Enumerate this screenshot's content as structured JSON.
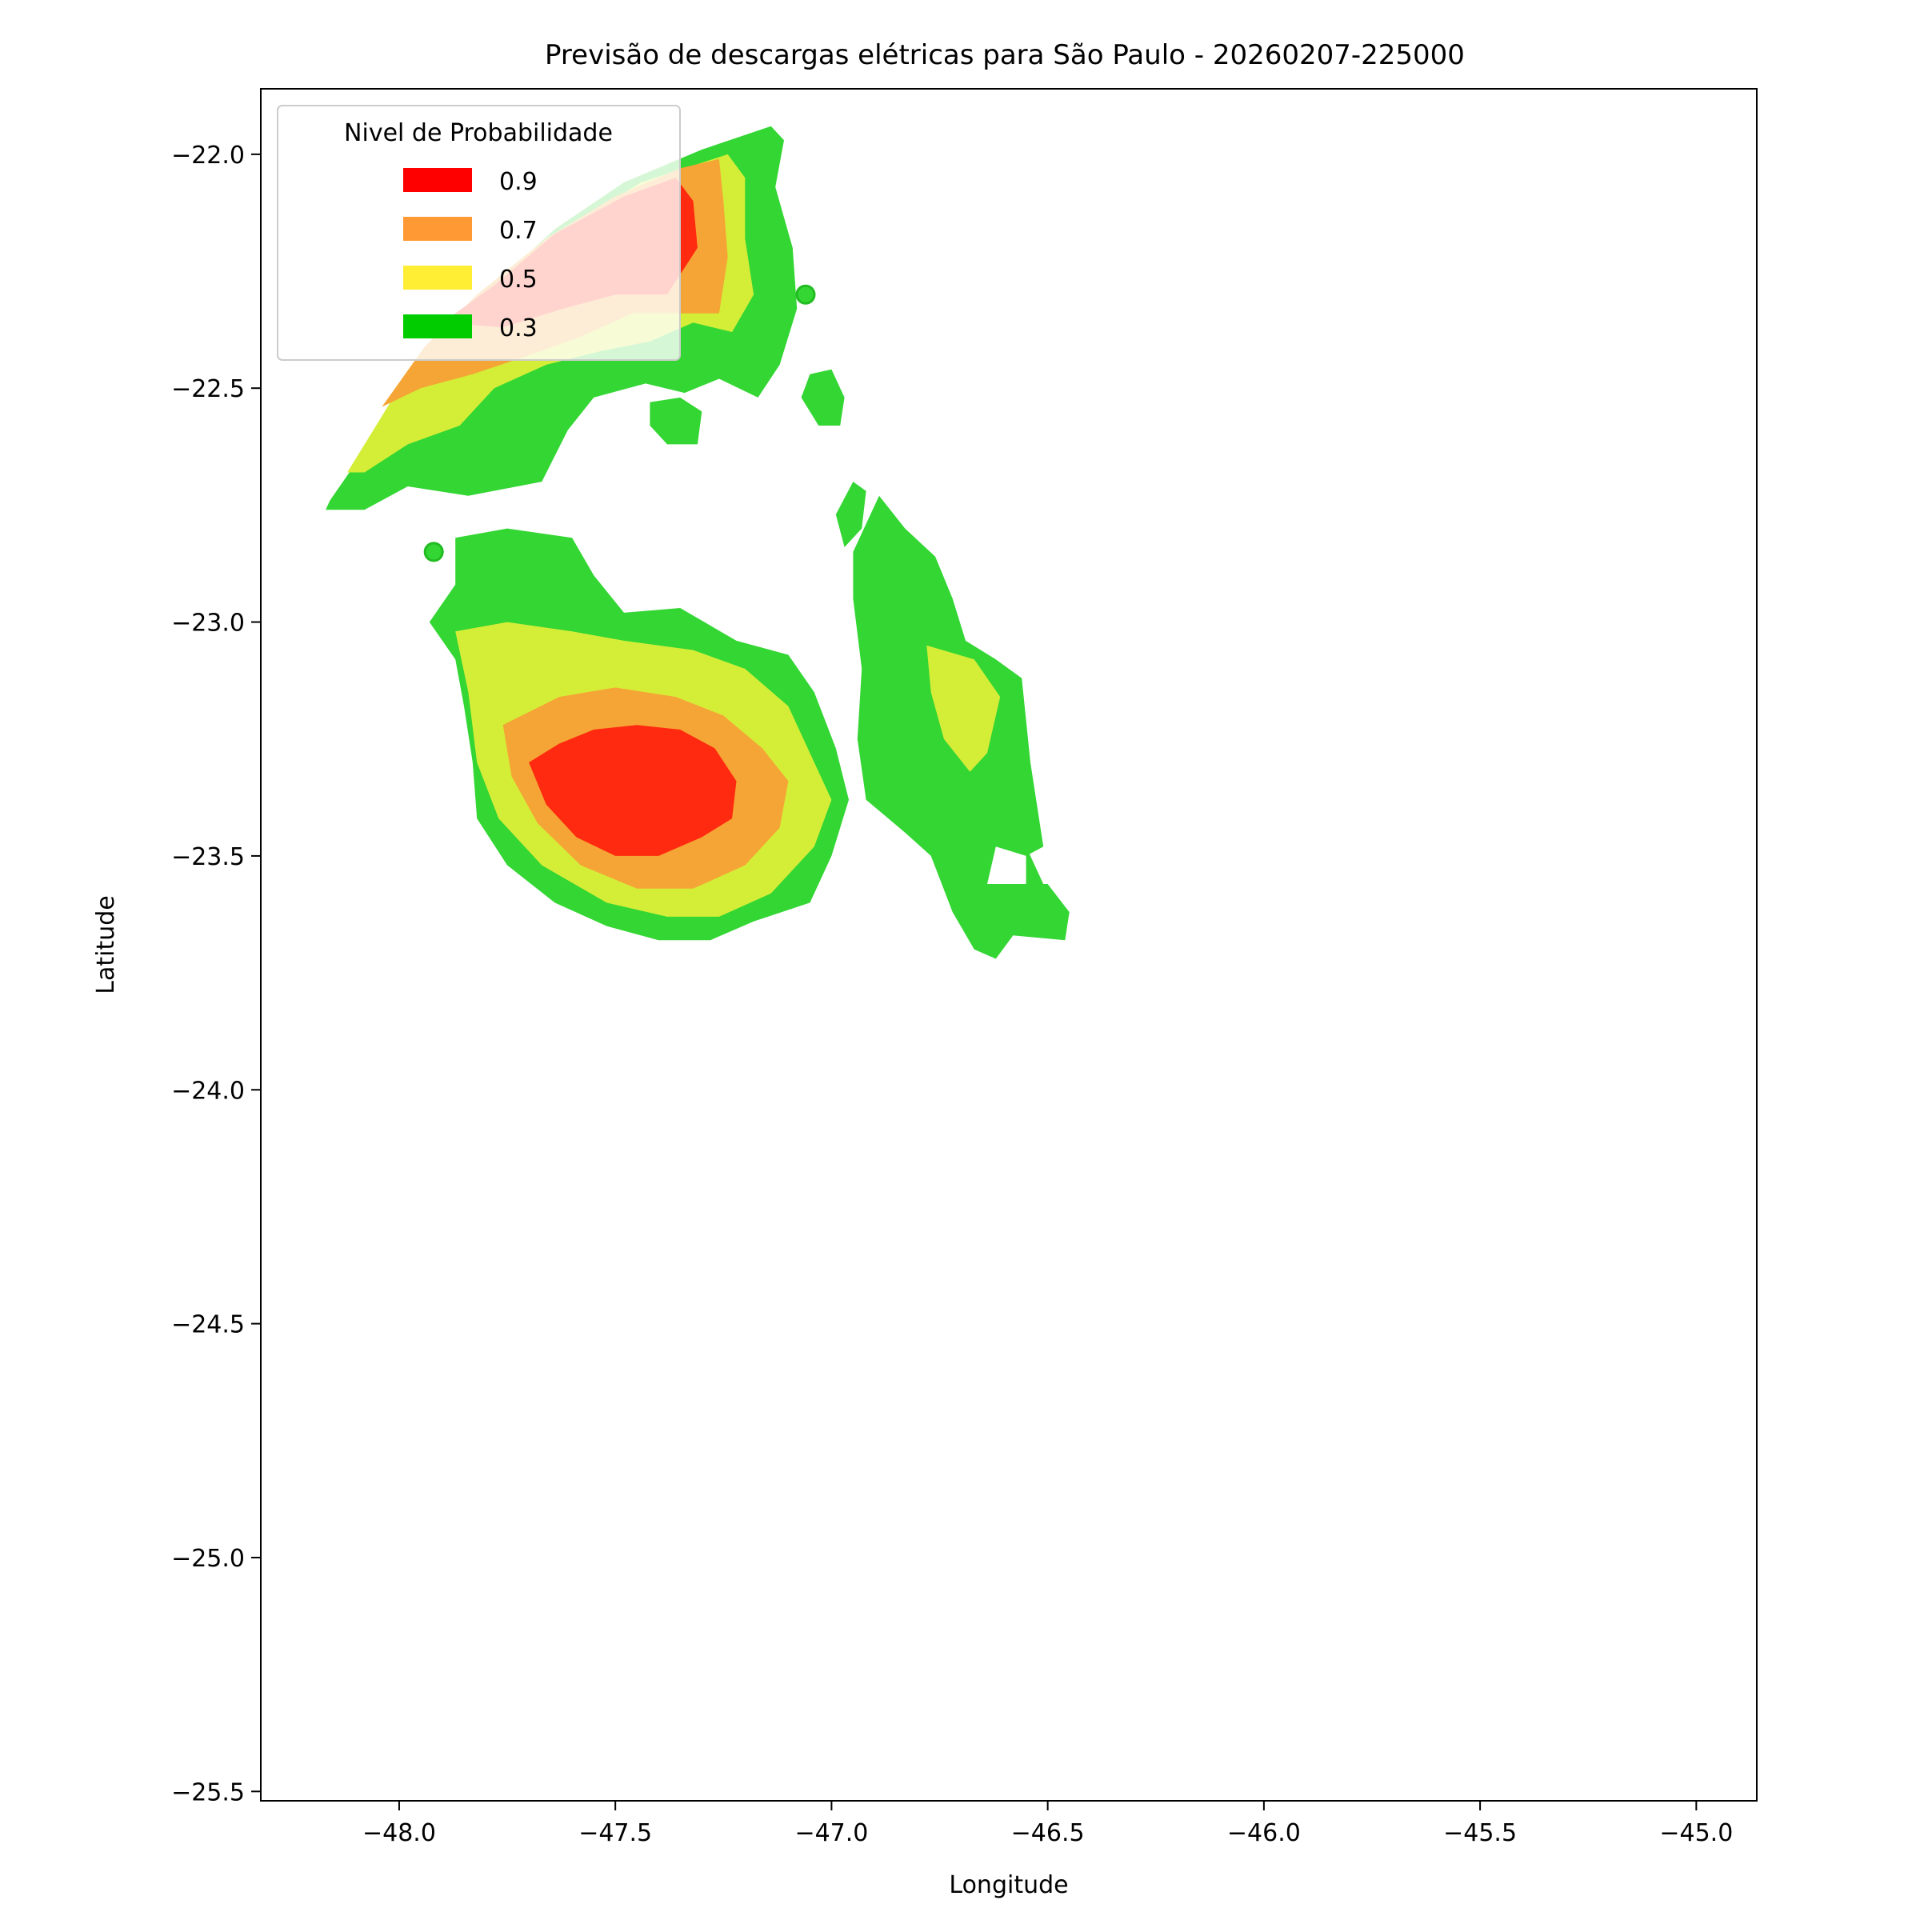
{
  "chart_data": {
    "type": "contour",
    "title": "Previsão de descargas elétricas para São Paulo - 20260207-225000",
    "xlabel": "Longitude",
    "ylabel": "Latitude",
    "xlim": [
      -48.32,
      -44.86
    ],
    "ylim": [
      -25.52,
      -21.86
    ],
    "x_ticks": [
      -48.0,
      -47.5,
      -47.0,
      -46.5,
      -46.0,
      -45.5,
      -45.0
    ],
    "x_tick_labels": [
      "−48.0",
      "−47.5",
      "−47.0",
      "−46.5",
      "−46.0",
      "−45.5",
      "−45.0"
    ],
    "y_ticks": [
      -22.0,
      -22.5,
      -23.0,
      -23.5,
      -24.0,
      -24.5,
      -25.0,
      -25.5
    ],
    "y_tick_labels": [
      "−22.0",
      "−22.5",
      "−23.0",
      "−23.5",
      "−24.0",
      "−24.5",
      "−25.0",
      "−25.5"
    ],
    "grid": false,
    "legend": {
      "title": "Nivel de Probabilidade",
      "placement": "upper-left",
      "entries": [
        {
          "label": "0.9",
          "color": "#ff0000"
        },
        {
          "label": "0.7",
          "color": "#ff9933"
        },
        {
          "label": "0.5",
          "color": "#ffee33"
        },
        {
          "label": "0.3",
          "color": "#00cc00"
        }
      ]
    },
    "fill_colors": {
      "0.3": "#33d633",
      "0.5": "#d4ee38",
      "0.7": "#f5a535",
      "0.9": "#ff2a0f"
    },
    "regions": [
      {
        "name": "north-arc",
        "level": "0.3",
        "points": [
          [
            -48.16,
            -22.74
          ],
          [
            -48.07,
            -22.62
          ],
          [
            -47.99,
            -22.5
          ],
          [
            -47.88,
            -22.37
          ],
          [
            -47.77,
            -22.27
          ],
          [
            -47.64,
            -22.16
          ],
          [
            -47.48,
            -22.06
          ],
          [
            -47.3,
            -21.99
          ],
          [
            -47.14,
            -21.94
          ],
          [
            -47.11,
            -21.97
          ],
          [
            -47.13,
            -22.07
          ],
          [
            -47.09,
            -22.2
          ],
          [
            -47.08,
            -22.33
          ],
          [
            -47.12,
            -22.45
          ],
          [
            -47.17,
            -22.52
          ],
          [
            -47.26,
            -22.48
          ],
          [
            -47.34,
            -22.51
          ],
          [
            -47.43,
            -22.49
          ],
          [
            -47.55,
            -22.52
          ],
          [
            -47.61,
            -22.59
          ],
          [
            -47.67,
            -22.7
          ],
          [
            -47.84,
            -22.73
          ],
          [
            -47.98,
            -22.71
          ],
          [
            -48.08,
            -22.76
          ],
          [
            -48.17,
            -22.76
          ]
        ]
      },
      {
        "name": "north-arc",
        "level": "0.5",
        "points": [
          [
            -48.12,
            -22.68
          ],
          [
            -48.02,
            -22.53
          ],
          [
            -47.9,
            -22.4
          ],
          [
            -47.75,
            -22.27
          ],
          [
            -47.6,
            -22.15
          ],
          [
            -47.44,
            -22.06
          ],
          [
            -47.24,
            -22.0
          ],
          [
            -47.2,
            -22.05
          ],
          [
            -47.2,
            -22.18
          ],
          [
            -47.18,
            -22.3
          ],
          [
            -47.23,
            -22.38
          ],
          [
            -47.32,
            -22.36
          ],
          [
            -47.42,
            -22.4
          ],
          [
            -47.53,
            -22.42
          ],
          [
            -47.66,
            -22.45
          ],
          [
            -47.78,
            -22.5
          ],
          [
            -47.86,
            -22.58
          ],
          [
            -47.98,
            -22.62
          ],
          [
            -48.08,
            -22.68
          ]
        ]
      },
      {
        "name": "north-arc",
        "level": "0.7",
        "points": [
          [
            -48.04,
            -22.54
          ],
          [
            -47.94,
            -22.41
          ],
          [
            -47.82,
            -22.3
          ],
          [
            -47.66,
            -22.18
          ],
          [
            -47.5,
            -22.09
          ],
          [
            -47.35,
            -22.03
          ],
          [
            -47.26,
            -22.01
          ],
          [
            -47.25,
            -22.1
          ],
          [
            -47.24,
            -22.22
          ],
          [
            -47.26,
            -22.34
          ],
          [
            -47.36,
            -22.34
          ],
          [
            -47.46,
            -22.34
          ],
          [
            -47.58,
            -22.39
          ],
          [
            -47.7,
            -22.43
          ],
          [
            -47.83,
            -22.47
          ],
          [
            -47.95,
            -22.5
          ]
        ]
      },
      {
        "name": "north-arc",
        "level": "0.9",
        "points": [
          [
            -47.9,
            -22.36
          ],
          [
            -47.78,
            -22.28
          ],
          [
            -47.64,
            -22.17
          ],
          [
            -47.48,
            -22.09
          ],
          [
            -47.36,
            -22.05
          ],
          [
            -47.32,
            -22.1
          ],
          [
            -47.31,
            -22.2
          ],
          [
            -47.38,
            -22.3
          ],
          [
            -47.5,
            -22.3
          ],
          [
            -47.62,
            -22.33
          ],
          [
            -47.76,
            -22.37
          ]
        ]
      },
      {
        "name": "central-cell",
        "level": "0.3",
        "points": [
          [
            -47.93,
            -23.0
          ],
          [
            -47.87,
            -23.08
          ],
          [
            -47.85,
            -23.18
          ],
          [
            -47.83,
            -23.3
          ],
          [
            -47.82,
            -23.42
          ],
          [
            -47.75,
            -23.52
          ],
          [
            -47.64,
            -23.6
          ],
          [
            -47.52,
            -23.65
          ],
          [
            -47.4,
            -23.68
          ],
          [
            -47.28,
            -23.68
          ],
          [
            -47.18,
            -23.64
          ],
          [
            -47.05,
            -23.6
          ],
          [
            -47.0,
            -23.5
          ],
          [
            -46.96,
            -23.38
          ],
          [
            -46.99,
            -23.27
          ],
          [
            -47.04,
            -23.15
          ],
          [
            -47.1,
            -23.07
          ],
          [
            -47.22,
            -23.04
          ],
          [
            -47.35,
            -22.97
          ],
          [
            -47.48,
            -22.98
          ],
          [
            -47.55,
            -22.9
          ],
          [
            -47.6,
            -22.82
          ],
          [
            -47.75,
            -22.8
          ],
          [
            -47.87,
            -22.82
          ],
          [
            -47.87,
            -22.92
          ]
        ]
      },
      {
        "name": "central-cell",
        "level": "0.5",
        "points": [
          [
            -47.87,
            -23.02
          ],
          [
            -47.84,
            -23.15
          ],
          [
            -47.82,
            -23.3
          ],
          [
            -47.77,
            -23.42
          ],
          [
            -47.67,
            -23.52
          ],
          [
            -47.52,
            -23.6
          ],
          [
            -47.38,
            -23.63
          ],
          [
            -47.26,
            -23.63
          ],
          [
            -47.14,
            -23.58
          ],
          [
            -47.04,
            -23.48
          ],
          [
            -47.0,
            -23.38
          ],
          [
            -47.05,
            -23.28
          ],
          [
            -47.1,
            -23.18
          ],
          [
            -47.2,
            -23.1
          ],
          [
            -47.32,
            -23.06
          ],
          [
            -47.48,
            -23.04
          ],
          [
            -47.6,
            -23.02
          ],
          [
            -47.75,
            -23.0
          ]
        ]
      },
      {
        "name": "central-cell",
        "level": "0.7",
        "points": [
          [
            -47.76,
            -23.22
          ],
          [
            -47.74,
            -23.33
          ],
          [
            -47.68,
            -23.43
          ],
          [
            -47.58,
            -23.52
          ],
          [
            -47.45,
            -23.57
          ],
          [
            -47.32,
            -23.57
          ],
          [
            -47.2,
            -23.52
          ],
          [
            -47.12,
            -23.44
          ],
          [
            -47.1,
            -23.34
          ],
          [
            -47.16,
            -23.27
          ],
          [
            -47.25,
            -23.2
          ],
          [
            -47.36,
            -23.16
          ],
          [
            -47.5,
            -23.14
          ],
          [
            -47.63,
            -23.16
          ]
        ]
      },
      {
        "name": "central-cell",
        "level": "0.9",
        "points": [
          [
            -47.7,
            -23.3
          ],
          [
            -47.66,
            -23.39
          ],
          [
            -47.59,
            -23.46
          ],
          [
            -47.5,
            -23.5
          ],
          [
            -47.4,
            -23.5
          ],
          [
            -47.3,
            -23.46
          ],
          [
            -47.23,
            -23.42
          ],
          [
            -47.22,
            -23.34
          ],
          [
            -47.27,
            -23.27
          ],
          [
            -47.35,
            -23.23
          ],
          [
            -47.45,
            -23.22
          ],
          [
            -47.55,
            -23.23
          ],
          [
            -47.63,
            -23.26
          ]
        ]
      },
      {
        "name": "east-strip",
        "level": "0.3",
        "points": [
          [
            -46.89,
            -22.73
          ],
          [
            -46.83,
            -22.8
          ],
          [
            -46.76,
            -22.86
          ],
          [
            -46.72,
            -22.95
          ],
          [
            -46.69,
            -23.04
          ],
          [
            -46.62,
            -23.08
          ],
          [
            -46.56,
            -23.12
          ],
          [
            -46.54,
            -23.3
          ],
          [
            -46.51,
            -23.48
          ],
          [
            -46.55,
            -23.5
          ],
          [
            -46.62,
            -23.48
          ],
          [
            -46.64,
            -23.56
          ],
          [
            -46.5,
            -23.56
          ],
          [
            -46.45,
            -23.62
          ],
          [
            -46.46,
            -23.68
          ],
          [
            -46.58,
            -23.67
          ],
          [
            -46.62,
            -23.72
          ],
          [
            -46.67,
            -23.7
          ],
          [
            -46.72,
            -23.62
          ],
          [
            -46.77,
            -23.5
          ],
          [
            -46.83,
            -23.45
          ],
          [
            -46.92,
            -23.38
          ],
          [
            -46.94,
            -23.25
          ],
          [
            -46.93,
            -23.1
          ],
          [
            -46.95,
            -22.95
          ],
          [
            -46.95,
            -22.85
          ]
        ]
      },
      {
        "name": "east-strip",
        "level": "0.5",
        "points": [
          [
            -46.78,
            -23.05
          ],
          [
            -46.77,
            -23.15
          ],
          [
            -46.74,
            -23.25
          ],
          [
            -46.68,
            -23.32
          ],
          [
            -46.64,
            -23.28
          ],
          [
            -46.61,
            -23.16
          ],
          [
            -46.67,
            -23.08
          ]
        ]
      },
      {
        "name": "north-blob-a",
        "level": "0.3",
        "points": [
          [
            -47.05,
            -22.47
          ],
          [
            -47.0,
            -22.46
          ],
          [
            -46.97,
            -22.52
          ],
          [
            -46.98,
            -22.58
          ],
          [
            -47.03,
            -22.58
          ],
          [
            -47.07,
            -22.52
          ]
        ]
      },
      {
        "name": "north-blob-b",
        "level": "0.3",
        "points": [
          [
            -47.42,
            -22.53
          ],
          [
            -47.35,
            -22.52
          ],
          [
            -47.3,
            -22.55
          ],
          [
            -47.31,
            -22.62
          ],
          [
            -47.38,
            -22.62
          ],
          [
            -47.42,
            -22.58
          ]
        ]
      },
      {
        "name": "mid-fragment",
        "level": "0.3",
        "points": [
          [
            -46.95,
            -22.7
          ],
          [
            -46.92,
            -22.72
          ],
          [
            -46.93,
            -22.8
          ],
          [
            -46.97,
            -22.84
          ],
          [
            -46.99,
            -22.77
          ]
        ]
      },
      {
        "name": "east-tail",
        "level": "0.3",
        "points": [
          [
            -46.55,
            -23.48
          ],
          [
            -46.5,
            -23.58
          ],
          [
            -46.47,
            -23.66
          ],
          [
            -46.53,
            -23.67
          ],
          [
            -46.55,
            -23.6
          ]
        ]
      }
    ],
    "markers": [
      {
        "x": -47.06,
        "y": -22.3,
        "level": "0.3"
      },
      {
        "x": -47.92,
        "y": -22.85,
        "level": "0.3"
      }
    ]
  }
}
